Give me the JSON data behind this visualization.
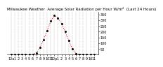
{
  "title": "Milwaukee Weather  Average Solar Radiation per Hour W/m²  (Last 24 Hours)",
  "x_values": [
    0,
    1,
    2,
    3,
    4,
    5,
    6,
    7,
    8,
    9,
    10,
    11,
    12,
    13,
    14,
    15,
    16,
    17,
    18,
    19,
    20,
    21,
    22,
    23
  ],
  "y_values": [
    0,
    0,
    0,
    0,
    0,
    0,
    2,
    15,
    60,
    130,
    210,
    290,
    340,
    320,
    270,
    200,
    120,
    50,
    10,
    2,
    0,
    0,
    0,
    0
  ],
  "line_color": "#ff0000",
  "marker_color": "#000000",
  "bg_color": "#ffffff",
  "grid_color": "#aaaaaa",
  "ylim": [
    0,
    370
  ],
  "ytick_values": [
    50,
    100,
    150,
    200,
    250,
    300,
    350
  ],
  "xtick_labels": [
    "12a",
    "1",
    "2",
    "3",
    "4",
    "5",
    "6",
    "7",
    "8",
    "9",
    "10",
    "11",
    "12p",
    "1",
    "2",
    "3",
    "4",
    "5",
    "6",
    "7",
    "8",
    "9",
    "10",
    "11"
  ],
  "title_fontsize": 4.0,
  "tick_fontsize": 3.5
}
